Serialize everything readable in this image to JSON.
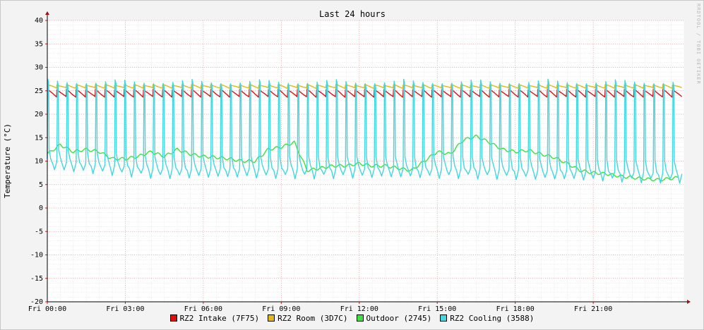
{
  "chart_data": {
    "type": "line",
    "title": "Last 24 hours",
    "ylabel": "Temperature (°C)",
    "xlabel": "",
    "ylim": [
      -20,
      40
    ],
    "yticks": [
      40,
      35,
      30,
      25,
      20,
      15,
      10,
      5,
      0,
      -5,
      -10,
      -15,
      -20
    ],
    "ytick_labels": [
      "40",
      "35",
      "30",
      "25",
      "20",
      "15",
      "10",
      "5",
      "0",
      "-5",
      "-10",
      "-15",
      "-20"
    ],
    "xlim_hours": [
      0,
      24.5
    ],
    "xticks": [
      0,
      3,
      6,
      9,
      12,
      15,
      18,
      21
    ],
    "xtick_labels": [
      "Fri 00:00",
      "Fri 03:00",
      "Fri 06:00",
      "Fri 09:00",
      "Fri 12:00",
      "Fri 15:00",
      "Fri 18:00",
      "Fri 21:00"
    ],
    "grid": true,
    "legend_position": "bottom",
    "series": [
      {
        "name": "RZ2 Intake (7F75)",
        "color": "#e01010",
        "pattern": "sawtooth",
        "x": [
          0,
          24.3
        ],
        "period_hours": 0.37,
        "high": 25.3,
        "low": 23.7
      },
      {
        "name": "RZ2 Room (3D7C)",
        "color": "#e2b818",
        "pattern": "sawtooth",
        "x": [
          0,
          24.3
        ],
        "period_hours": 0.37,
        "high": 26.3,
        "low": 25.6
      },
      {
        "name": "Outdoor (2745)",
        "color": "#40e040",
        "pattern": "smooth",
        "x": [
          0,
          0.5,
          1,
          1.5,
          2,
          2.5,
          3,
          3.5,
          4,
          4.5,
          5,
          5.5,
          6,
          6.5,
          7,
          7.5,
          8,
          8.5,
          9,
          9.5,
          10,
          10.5,
          11,
          11.5,
          12,
          12.5,
          13,
          13.5,
          14,
          14.5,
          15,
          15.5,
          16,
          16.5,
          17,
          17.5,
          18,
          18.5,
          19,
          19.5,
          20,
          20.5,
          21,
          21.5,
          22,
          22.5,
          23,
          23.5,
          24,
          24.3
        ],
        "y": [
          11.5,
          13.5,
          12.0,
          12.5,
          12.0,
          10.5,
          10.5,
          11.0,
          12.0,
          11.0,
          12.5,
          11.5,
          11.0,
          10.8,
          10.5,
          10.0,
          10.0,
          12.5,
          13.0,
          14.0,
          8.0,
          8.5,
          9.0,
          9.0,
          9.5,
          9.0,
          9.0,
          8.5,
          8.0,
          10.0,
          12.0,
          11.5,
          14.5,
          15.3,
          14.0,
          12.5,
          12.0,
          12.3,
          11.5,
          10.8,
          9.5,
          8.0,
          7.5,
          7.3,
          6.8,
          6.5,
          6.2,
          6.0,
          6.3,
          6.5
        ]
      },
      {
        "name": "RZ2 Cooling (3588)",
        "color": "#40d8e0",
        "pattern": "spikes",
        "x": [
          0,
          24.3
        ],
        "period_hours": 0.37,
        "peak": 27.5,
        "baseline": [
          0,
          4,
          8,
          12,
          16,
          20,
          24
        ],
        "baseline_y": [
          9.0,
          7.5,
          7.5,
          7.5,
          7.5,
          7.0,
          6.5
        ]
      }
    ]
  },
  "watermark": "RRDTOOL / TOBI OETIKER"
}
